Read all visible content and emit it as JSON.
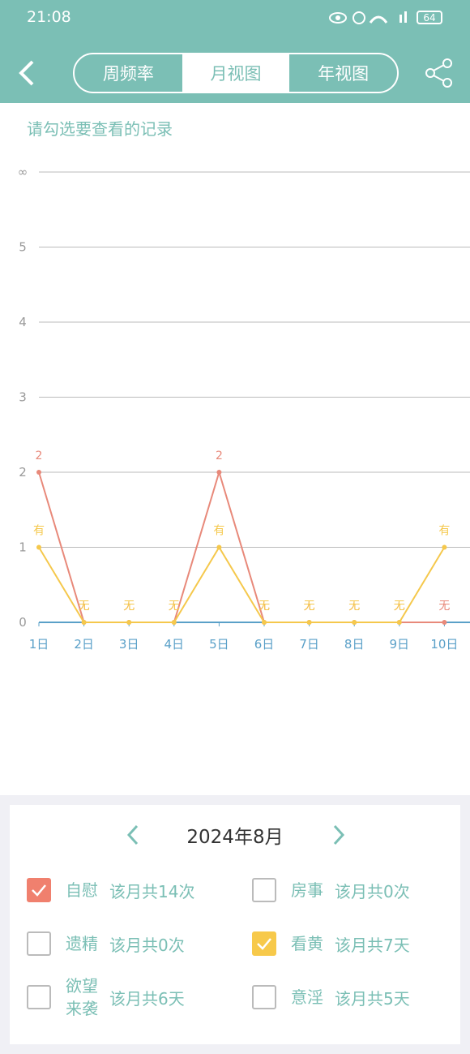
{
  "status_bar": {
    "time": "21:08",
    "battery": "64"
  },
  "header": {
    "tabs": [
      "周频率",
      "月视图",
      "年视图"
    ],
    "active_tab": 1
  },
  "subtitle": "请勾选要查看的记录",
  "chart_data": {
    "type": "line",
    "categories": [
      "1日",
      "2日",
      "3日",
      "4日",
      "5日",
      "6日",
      "7日",
      "8日",
      "9日",
      "10日"
    ],
    "series": [
      {
        "name": "自慰",
        "color": "#e8897a",
        "values": [
          2,
          0,
          0,
          0,
          2,
          0,
          0,
          0,
          0,
          0
        ],
        "value_labels": [
          "2",
          "无",
          "无",
          "无",
          "2",
          "无",
          "无",
          "无",
          "无",
          "无"
        ]
      },
      {
        "name": "看黄",
        "color": "#f5c84c",
        "values": [
          1,
          0,
          0,
          0,
          1,
          0,
          0,
          0,
          0,
          1
        ],
        "value_labels": [
          "有",
          "无",
          "无",
          "无",
          "有",
          "无",
          "无",
          "无",
          "无",
          "有"
        ]
      }
    ],
    "ylim": [
      0,
      6
    ],
    "yticks": [
      0,
      1,
      2,
      3,
      4,
      5,
      {
        "value": 6,
        "label": "∞"
      }
    ],
    "grid": true
  },
  "month_nav": {
    "label": "2024年8月"
  },
  "records": [
    {
      "name": "自慰",
      "summary": "该月共14次",
      "checked": true,
      "color": "#f0806e"
    },
    {
      "name": "房事",
      "summary": "该月共0次",
      "checked": false,
      "color": "#f0806e"
    },
    {
      "name": "遗精",
      "summary": "该月共0次",
      "checked": false,
      "color": "#f0806e"
    },
    {
      "name": "看黄",
      "summary": "该月共7天",
      "checked": true,
      "color": "#f7c94a"
    },
    {
      "name": "欲望来袭",
      "summary": "该月共6天",
      "checked": false,
      "color": "#f0806e"
    },
    {
      "name": "意淫",
      "summary": "该月共5天",
      "checked": false,
      "color": "#f0806e"
    }
  ]
}
